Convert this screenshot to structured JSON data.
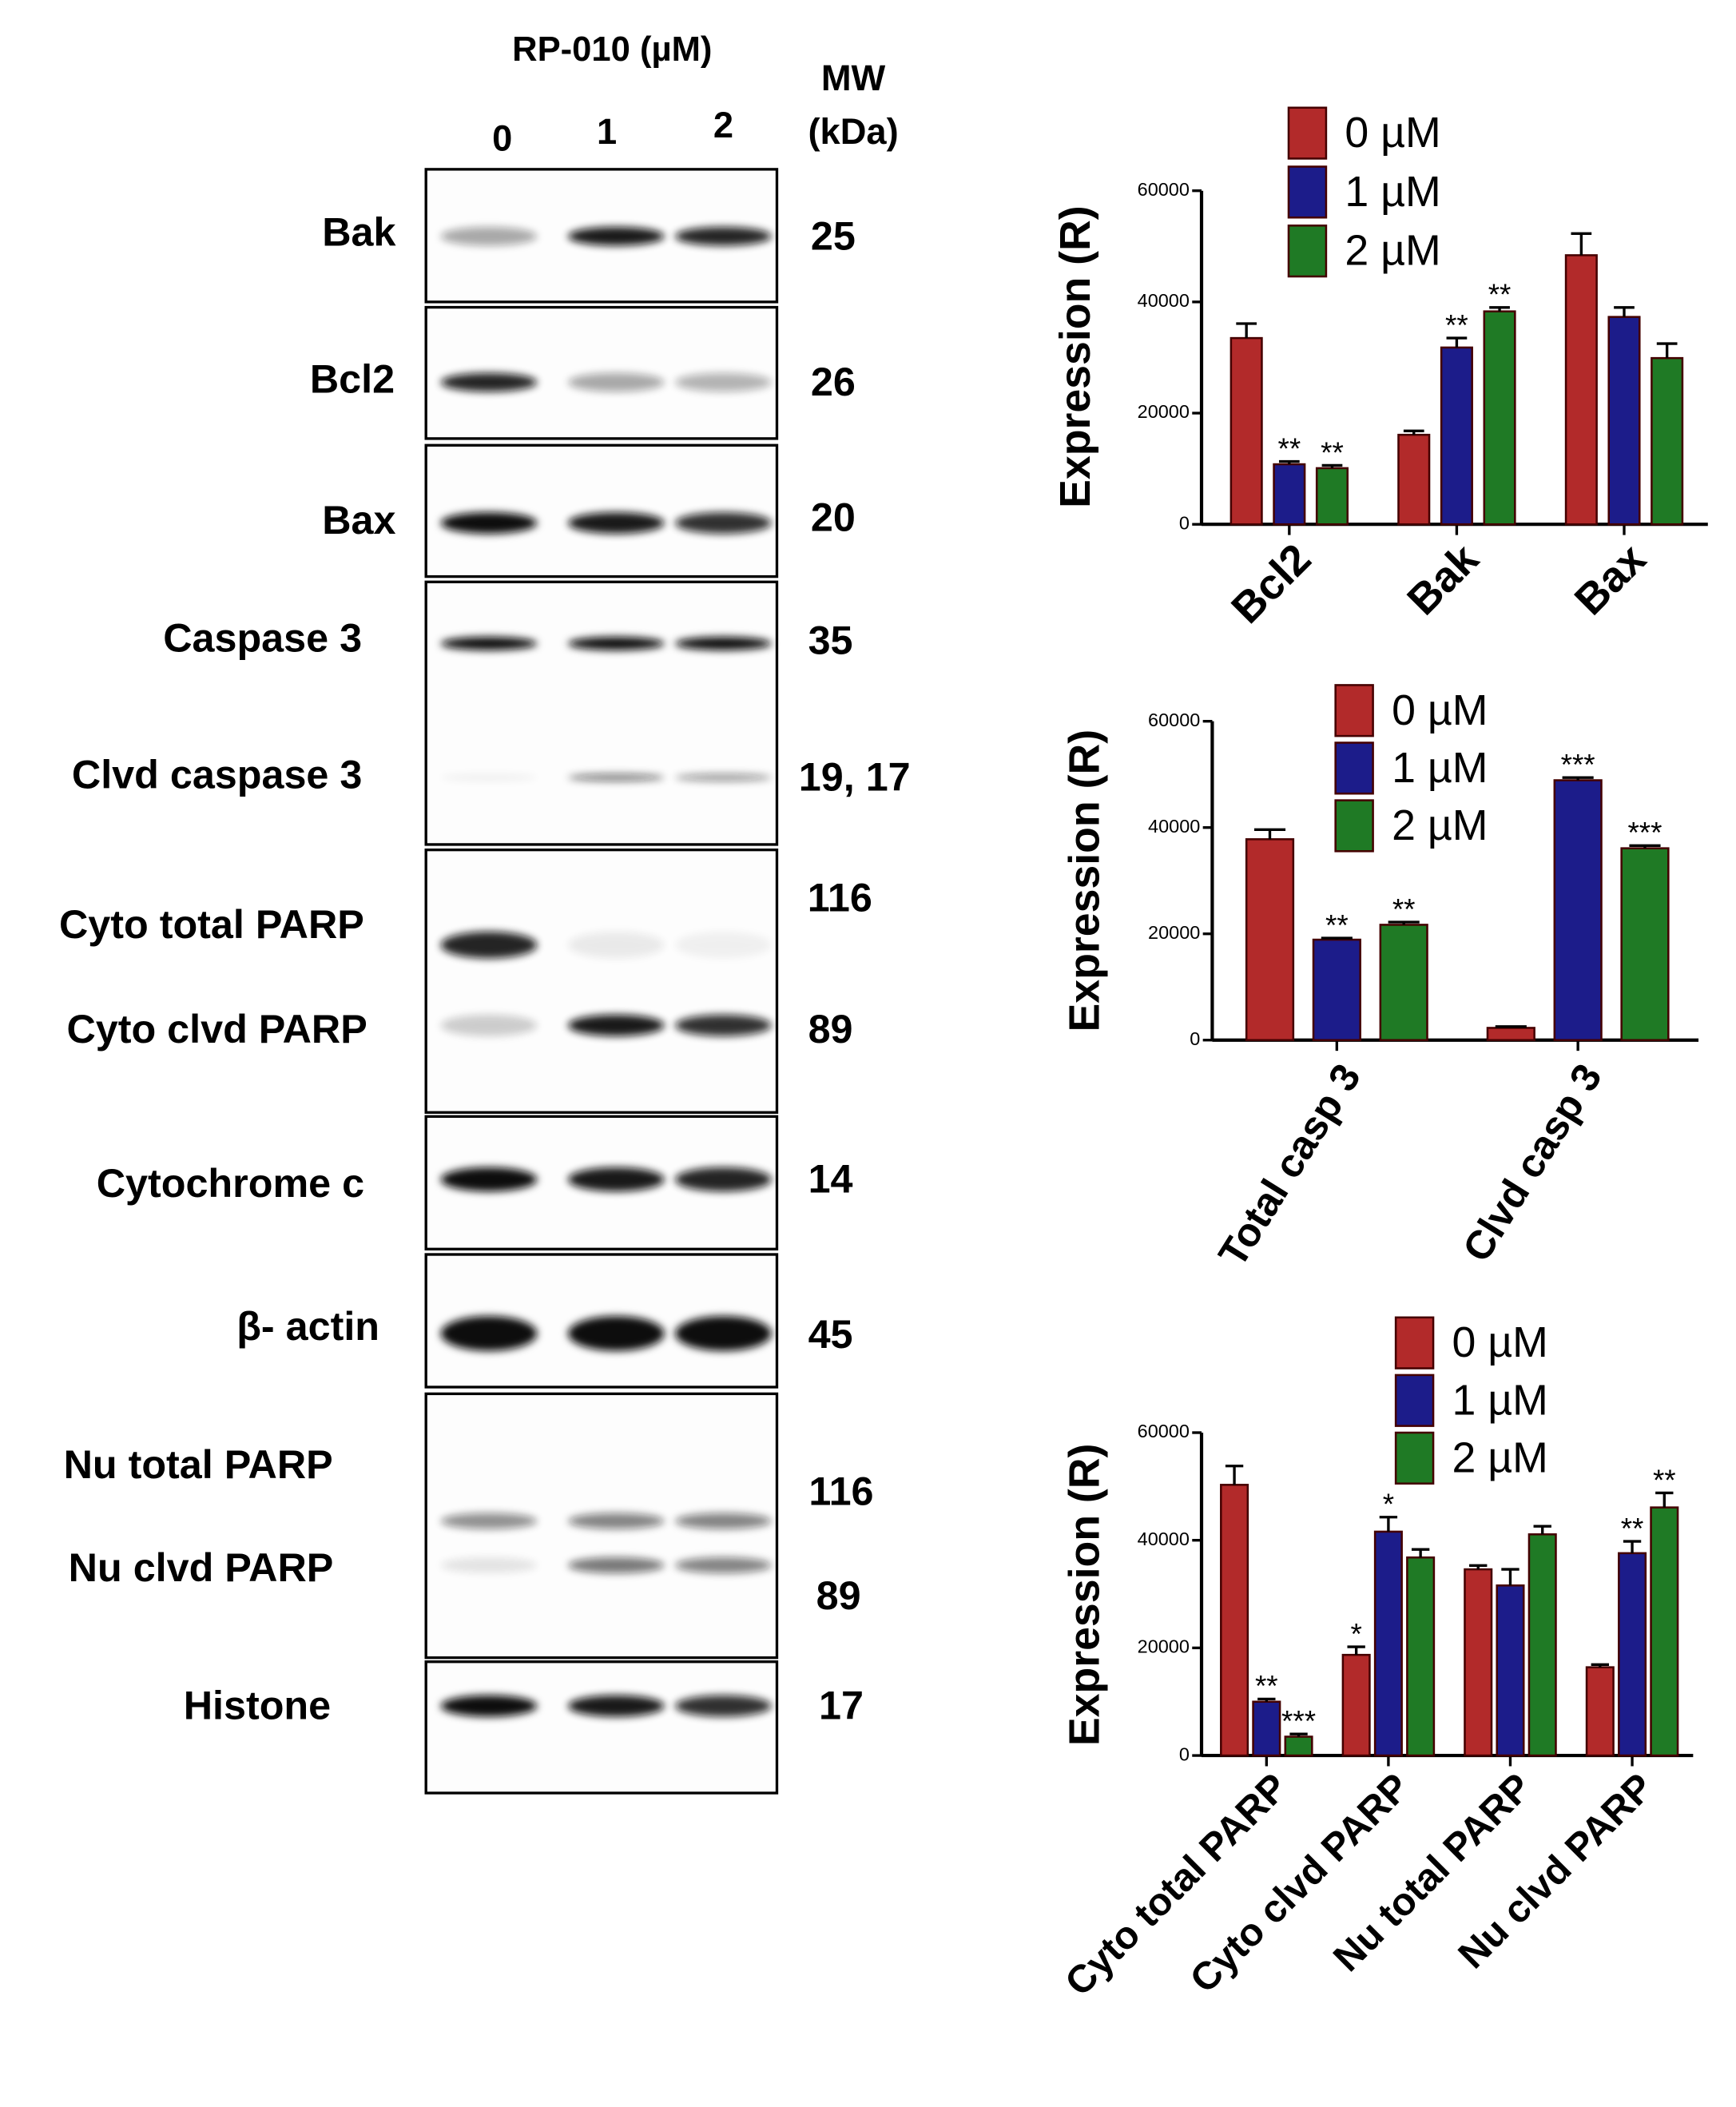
{
  "blot": {
    "title": "RP-010 (µM)",
    "lanes": [
      "0",
      "1",
      "2"
    ],
    "mw_header": [
      "MW",
      "(kDa)"
    ],
    "rows": [
      {
        "label": "Bak",
        "mw": "25"
      },
      {
        "label": "Bcl2",
        "mw": "26"
      },
      {
        "label": "Bax",
        "mw": "20"
      },
      {
        "label": "Caspase 3",
        "mw": "35"
      },
      {
        "label": "Clvd  caspase 3",
        "mw": "19, 17"
      },
      {
        "label": "Cyto total PARP",
        "mw": "116"
      },
      {
        "label": "Cyto clvd PARP",
        "mw": "89"
      },
      {
        "label": "Cytochrome c",
        "mw": "14"
      },
      {
        "label": "β- actin",
        "mw": "45"
      },
      {
        "label": "Nu total PARP",
        "mw": "116"
      },
      {
        "label": "Nu clvd PARP",
        "mw": "89"
      },
      {
        "label": "Histone",
        "mw": "17"
      }
    ]
  },
  "chart_data": [
    {
      "type": "bar",
      "y_label": "Expression (R)",
      "categories": [
        "Bcl2",
        "Bak",
        "Bax"
      ],
      "ylim": [
        0,
        60000
      ],
      "yticks": [
        0,
        20000,
        40000,
        60000
      ],
      "series": [
        {
          "name": "0 µM",
          "color": "#b22a2a",
          "values": [
            33500,
            16100,
            48400
          ],
          "errors": [
            2600,
            700,
            3900
          ],
          "significance": [
            null,
            null,
            null
          ]
        },
        {
          "name": "1 µM",
          "color": "#1c1c8a",
          "values": [
            10800,
            31800,
            37300
          ],
          "errors": [
            500,
            1700,
            1700
          ],
          "significance": [
            "**",
            "**",
            null
          ]
        },
        {
          "name": "2 µM",
          "color": "#1f7a25",
          "values": [
            10100,
            38300,
            29900
          ],
          "errors": [
            500,
            700,
            2600
          ],
          "significance": [
            "**",
            "**",
            null
          ]
        }
      ]
    },
    {
      "type": "bar",
      "y_label": "Expression (R)",
      "categories": [
        "Total casp 3",
        "Clvd casp 3"
      ],
      "ylim": [
        0,
        60000
      ],
      "yticks": [
        0,
        20000,
        40000,
        60000
      ],
      "series": [
        {
          "name": "0 µM",
          "color": "#b22a2a",
          "values": [
            37800,
            2300
          ],
          "errors": [
            1800,
            250
          ],
          "significance": [
            null,
            null
          ]
        },
        {
          "name": "1 µM",
          "color": "#1c1c8a",
          "values": [
            18900,
            48900
          ],
          "errors": [
            300,
            500
          ],
          "significance": [
            "**",
            "***"
          ]
        },
        {
          "name": "2 µM",
          "color": "#1f7a25",
          "values": [
            21700,
            36100
          ],
          "errors": [
            500,
            500
          ],
          "significance": [
            "**",
            "***"
          ]
        }
      ]
    },
    {
      "type": "bar",
      "y_label": "Expression (R)",
      "categories": [
        "Cyto total PARP",
        "Cyto clvd  PARP",
        "Nu total PARP",
        "Nu clvd PARP"
      ],
      "ylim": [
        0,
        60000
      ],
      "yticks": [
        0,
        20000,
        40000,
        60000
      ],
      "series": [
        {
          "name": "0 µM",
          "color": "#b22a2a",
          "values": [
            50300,
            18700,
            34600,
            16400
          ],
          "errors": [
            3500,
            1500,
            700,
            500
          ],
          "significance": [
            null,
            "*",
            null,
            null
          ]
        },
        {
          "name": "1 µM",
          "color": "#1c1c8a",
          "values": [
            10000,
            41600,
            31600,
            37600
          ],
          "errors": [
            500,
            2700,
            3000,
            2200
          ],
          "significance": [
            "**",
            "*",
            null,
            "**"
          ]
        },
        {
          "name": "2 µM",
          "color": "#1f7a25",
          "values": [
            3500,
            36800,
            41100,
            46100
          ],
          "errors": [
            500,
            1500,
            1500,
            2700
          ],
          "significance": [
            "***",
            null,
            null,
            "**"
          ]
        }
      ]
    }
  ]
}
